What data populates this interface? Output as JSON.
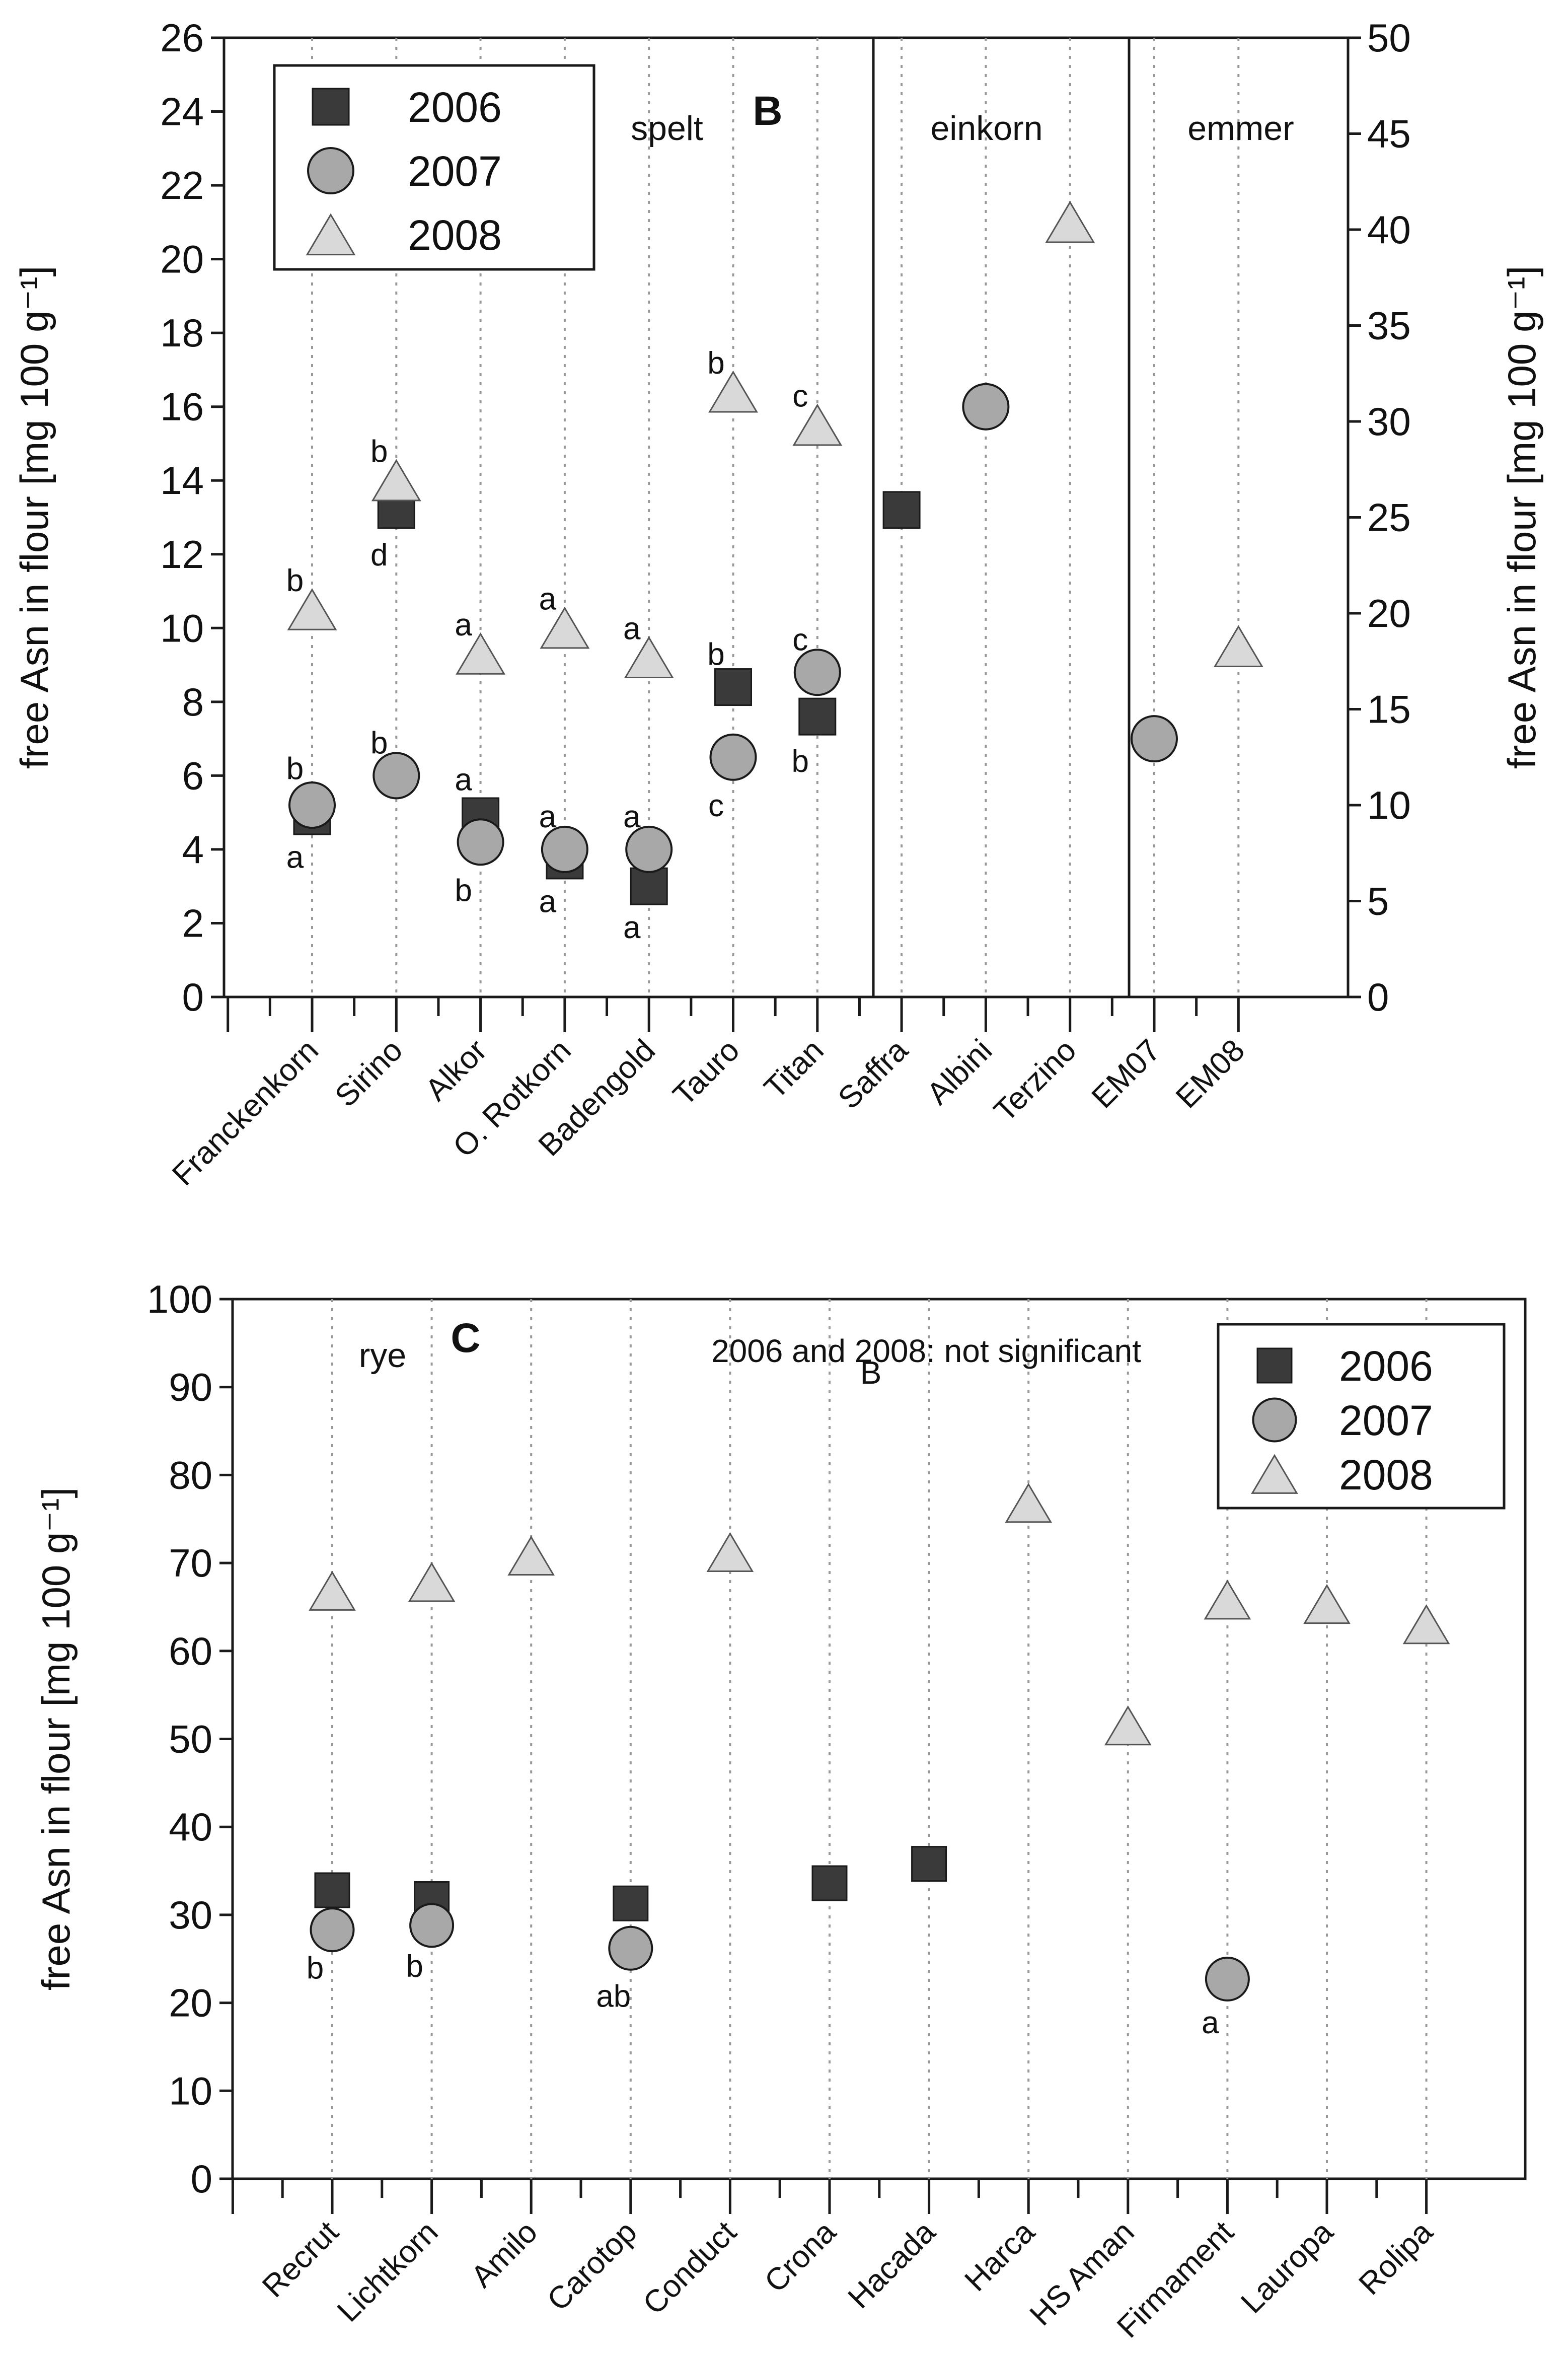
{
  "colors": {
    "square": "#3a3a3a",
    "circle": "#a8a8a8",
    "triangle": "#d9d9d9",
    "stroke": "#1a1a1a",
    "gridline": "#999999"
  },
  "chart_data": [
    {
      "type": "scatter",
      "panel_label": "B",
      "ylabel": "free Asn in flour [mg 100 g⁻¹]",
      "ylabel_right": "free Asn in flour [mg 100 g⁻¹]",
      "ylim": [
        0,
        26
      ],
      "y_ticks": [
        "0",
        "2",
        "4",
        "6",
        "8",
        "10",
        "12",
        "14",
        "16",
        "18",
        "20",
        "22",
        "24",
        "26"
      ],
      "ylim_right": [
        0,
        50
      ],
      "y_ticks_right": [
        "0",
        "5",
        "10",
        "15",
        "20",
        "25",
        "30",
        "35",
        "40",
        "45",
        "50"
      ],
      "legend_position": "top-left",
      "categories": [
        "Franckenkorn",
        "Sirino",
        "Alkor",
        "O. Rotkorn",
        "Badengold",
        "Tauro",
        "Titan",
        "Saffra",
        "Albini",
        "Terzino",
        "EM07",
        "EM08"
      ],
      "groups": [
        "spelt",
        "einkorn",
        "emmer"
      ],
      "series": [
        {
          "name": "2006",
          "marker": "square",
          "values": [
            4.9,
            13.2,
            4.9,
            3.7,
            3.0,
            8.4,
            7.6,
            13.2,
            null,
            null,
            null,
            null
          ]
        },
        {
          "name": "2007",
          "marker": "circle",
          "values": [
            5.2,
            6.0,
            4.2,
            4.0,
            4.0,
            6.5,
            8.8,
            null,
            16.0,
            null,
            7.0,
            null
          ]
        },
        {
          "name": "2008",
          "marker": "triangle",
          "values": [
            10.5,
            14.0,
            9.3,
            10.0,
            9.2,
            16.4,
            15.5,
            null,
            null,
            21.0,
            null,
            9.5
          ]
        }
      ],
      "annotations": [
        {
          "text": "b",
          "category": 0,
          "y": 11.3
        },
        {
          "text": "b",
          "category": 0,
          "y": 6.2
        },
        {
          "text": "a",
          "category": 0,
          "y": 3.8
        },
        {
          "text": "b",
          "category": 1,
          "y": 14.8
        },
        {
          "text": "d",
          "category": 1,
          "y": 12.0
        },
        {
          "text": "b",
          "category": 1,
          "y": 6.9
        },
        {
          "text": "a",
          "category": 2,
          "y": 10.1
        },
        {
          "text": "a",
          "category": 2,
          "y": 5.9
        },
        {
          "text": "b",
          "category": 2,
          "y": 2.9
        },
        {
          "text": "a",
          "category": 3,
          "y": 10.8
        },
        {
          "text": "a",
          "category": 3,
          "y": 4.9
        },
        {
          "text": "a",
          "category": 3,
          "y": 2.6
        },
        {
          "text": "a",
          "category": 4,
          "y": 10.0
        },
        {
          "text": "a",
          "category": 4,
          "y": 4.9
        },
        {
          "text": "a",
          "category": 4,
          "y": 1.9
        },
        {
          "text": "b",
          "category": 5,
          "y": 17.2
        },
        {
          "text": "b",
          "category": 5,
          "y": 9.3
        },
        {
          "text": "c",
          "category": 5,
          "y": 5.2
        },
        {
          "text": "c",
          "category": 6,
          "y": 16.3
        },
        {
          "text": "c",
          "category": 6,
          "y": 9.7
        },
        {
          "text": "b",
          "category": 6,
          "y": 6.4
        }
      ]
    },
    {
      "type": "scatter",
      "panel_label": "C",
      "group_label": "rye",
      "note": "2006 and 2008: not significant",
      "stray_mark": "B",
      "ylabel": "free Asn in flour [mg 100 g⁻¹]",
      "ylim": [
        0,
        100
      ],
      "y_ticks": [
        "0",
        "10",
        "20",
        "30",
        "40",
        "50",
        "60",
        "70",
        "80",
        "90",
        "100"
      ],
      "legend_position": "top-right",
      "categories": [
        "Recrut",
        "Lichtkorn",
        "Amilo",
        "Carotop",
        "Conduct",
        "Crona",
        "Hacada",
        "Harca",
        "HS Aman",
        "Firmament",
        "Lauropa",
        "Rolipa"
      ],
      "series": [
        {
          "name": "2006",
          "marker": "square",
          "values": [
            32.8,
            31.8,
            null,
            31.3,
            null,
            33.6,
            35.8,
            null,
            null,
            null,
            null,
            null
          ]
        },
        {
          "name": "2007",
          "marker": "circle",
          "values": [
            28.3,
            28.8,
            null,
            26.2,
            null,
            null,
            null,
            null,
            null,
            22.7,
            null,
            null
          ]
        },
        {
          "name": "2008",
          "marker": "triangle",
          "values": [
            66.8,
            67.8,
            70.8,
            null,
            71.2,
            null,
            null,
            76.8,
            51.5,
            65.8,
            65.3,
            63.0
          ]
        }
      ],
      "annotations": [
        {
          "text": "b",
          "category": 0,
          "y": 24.0
        },
        {
          "text": "b",
          "category": 1,
          "y": 24.2
        },
        {
          "text": "ab",
          "category": 3,
          "y": 20.8
        },
        {
          "text": "a",
          "category": 9,
          "y": 17.8
        }
      ]
    }
  ]
}
